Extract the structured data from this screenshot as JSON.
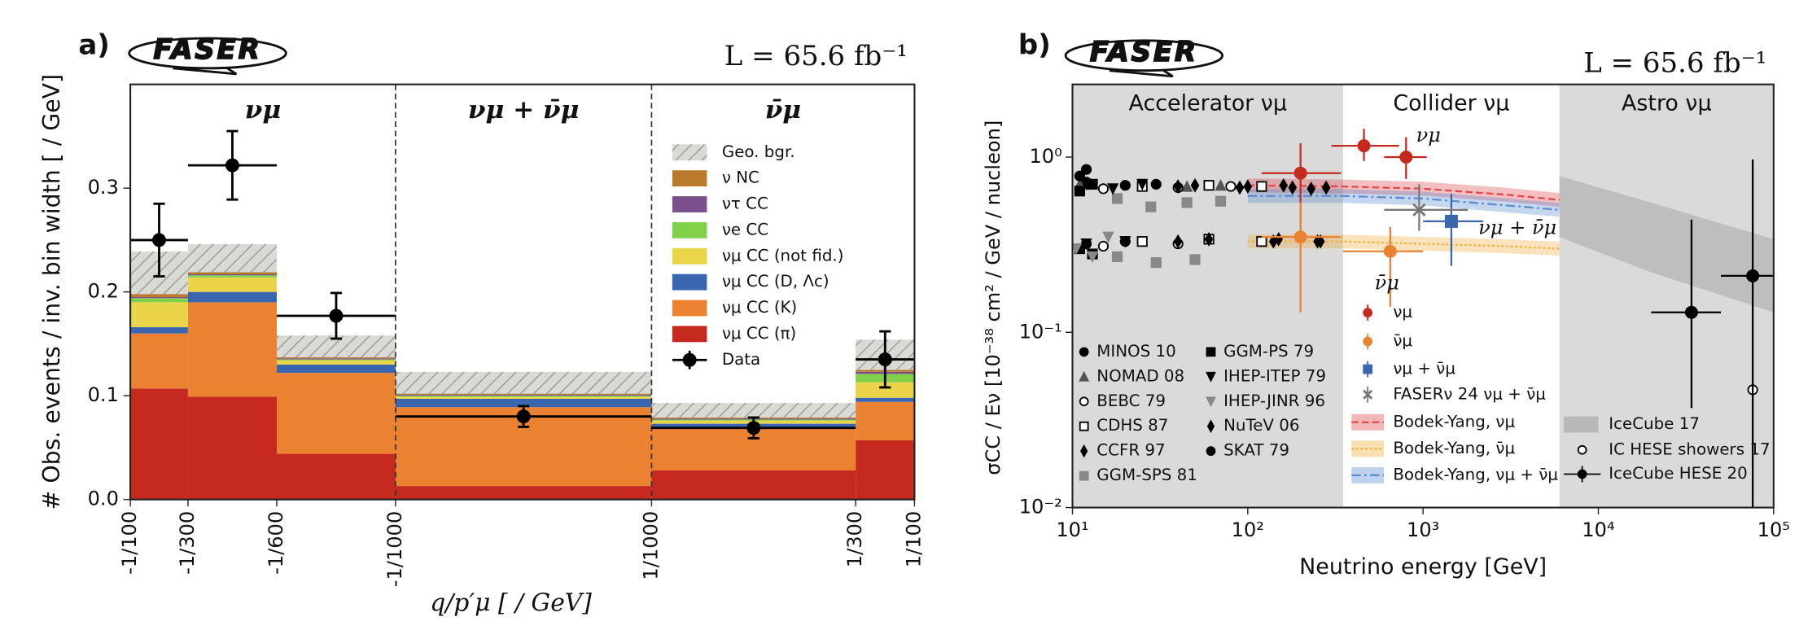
{
  "chart_data": [
    {
      "type": "stacked-histogram",
      "panel_label": "a)",
      "logo": "FASER",
      "luminosity": "L = 65.6 fb⁻¹",
      "xlabel": "q/p′μ [ / GeV]",
      "ylabel": "# Obs. events / inv. bin width [ / GeV]",
      "regions": [
        "νμ",
        "νμ + ν̄μ",
        "ν̄μ"
      ],
      "bins": [
        "-1/100",
        "-1/300",
        "-1/600",
        "-1/1000",
        "1/1000",
        "1/300",
        "1/100"
      ],
      "ylim": [
        0,
        0.4
      ],
      "yticks": [
        {
          "value": 0,
          "label": "0.0"
        },
        0.1,
        0.2,
        0.3
      ],
      "series": [
        {
          "name": "νμ CC (π)",
          "color": "#c62a1f",
          "values": [
            0.107,
            0.099,
            0.044,
            0.013,
            0.028,
            0.057
          ]
        },
        {
          "name": "νμ CC (K)",
          "color": "#ea8232",
          "values": [
            0.053,
            0.091,
            0.078,
            0.076,
            0.042,
            0.037
          ]
        },
        {
          "name": "νμ CC (D, Λc)",
          "color": "#3a66b0",
          "values": [
            0.006,
            0.01,
            0.008,
            0.008,
            0.003,
            0.004
          ]
        },
        {
          "name": "νμ CC (not fid.)",
          "color": "#e9d44a",
          "values": [
            0.024,
            0.014,
            0.004,
            0.002,
            0.003,
            0.015
          ]
        },
        {
          "name": "νe CC",
          "color": "#80d04a",
          "values": [
            0.004,
            0.002,
            0.001,
            0.001,
            0.001,
            0.008
          ]
        },
        {
          "name": "ντ CC",
          "color": "#7b4f8c",
          "values": [
            0.001,
            0.001,
            0.001,
            0.001,
            0.001,
            0.002
          ]
        },
        {
          "name": "ν NC",
          "color": "#b97a2e",
          "values": [
            0.003,
            0.002,
            0.001,
            0.001,
            0.001,
            0.002
          ]
        },
        {
          "name": "Geo. bgr.",
          "color": "#dadad4",
          "hatch": true,
          "values": [
            0.041,
            0.027,
            0.021,
            0.021,
            0.014,
            0.029
          ]
        }
      ],
      "data": {
        "name": "Data",
        "color": "#000000",
        "values": [
          0.25,
          0.322,
          0.177,
          0.08,
          0.069,
          0.135
        ],
        "errors": [
          0.035,
          0.033,
          0.022,
          0.01,
          0.01,
          0.027
        ]
      }
    },
    {
      "type": "log-scatter",
      "panel_label": "b)",
      "logo": "FASER",
      "luminosity": "L = 65.6 fb⁻¹",
      "xlabel": "Neutrino energy [GeV]",
      "ylabel": "σCC / Eν [10⁻³⁸ cm² / GeV / nucleon]",
      "xlog": true,
      "ylog": true,
      "xlim": [
        10,
        100000
      ],
      "xticks": [
        {
          "value": 10,
          "label": "10¹"
        },
        {
          "value": 100,
          "label": "10²"
        },
        {
          "value": 1000,
          "label": "10³"
        },
        {
          "value": 10000,
          "label": "10⁴"
        },
        {
          "value": 100000,
          "label": "10⁵"
        }
      ],
      "ylim": [
        0.01,
        2.6
      ],
      "yticks": [
        {
          "value": 0.01,
          "label": "10⁻²"
        },
        {
          "value": 0.1,
          "label": "10⁻¹"
        },
        {
          "value": 1,
          "label": "10⁰"
        }
      ],
      "regions": [
        {
          "label": "Accelerator νμ",
          "range": [
            10,
            350
          ],
          "color": "#dadada"
        },
        {
          "label": "Collider νμ",
          "range": [
            350,
            6000
          ],
          "color": "#ffffff"
        },
        {
          "label": "Astro νμ",
          "range": [
            6000,
            100000
          ],
          "color": "#dadada"
        }
      ],
      "models": [
        {
          "name": "Bodek-Yang, νμ",
          "color": "#e0484a",
          "dash": "6,3",
          "x": [
            100,
            350,
            1000,
            3000,
            6000
          ],
          "values": [
            0.69,
            0.68,
            0.66,
            0.61,
            0.57
          ]
        },
        {
          "name": "Bodek-Yang, ν̄μ",
          "color": "#f2b040",
          "dash": "2,2",
          "x": [
            100,
            350,
            1000,
            3000,
            6000
          ],
          "values": [
            0.33,
            0.33,
            0.32,
            0.31,
            0.3
          ]
        },
        {
          "name": "Bodek-Yang, νμ + ν̄μ",
          "color": "#5a8ad0",
          "dash": "8,3,2,3",
          "x": [
            100,
            350,
            1000,
            3000,
            6000
          ],
          "values": [
            0.6,
            0.6,
            0.58,
            0.53,
            0.5
          ]
        }
      ],
      "bands": [
        {
          "name": "IceCube 17",
          "color": "#b8b8b8",
          "x": [
            6000,
            20000,
            100000
          ],
          "upper": [
            0.78,
            0.55,
            0.34
          ],
          "lower": [
            0.35,
            0.22,
            0.13
          ]
        }
      ],
      "series": [
        {
          "name": "MINOS 10",
          "color": "#000000",
          "marker": "circle",
          "x": [
            12,
            20,
            30,
            12,
            20
          ],
          "values": [
            0.72,
            0.69,
            0.7,
            0.32,
            0.33
          ]
        },
        {
          "name": "NOMAD 08",
          "color": "#555555",
          "marker": "triangle",
          "x": [
            11,
            25,
            45,
            70
          ],
          "values": [
            0.7,
            0.69,
            0.68,
            0.69
          ]
        },
        {
          "name": "BEBC 79",
          "color": "#000000",
          "marker": "open-circle",
          "x": [
            15,
            40,
            80,
            15,
            40
          ],
          "values": [
            0.66,
            0.67,
            0.68,
            0.31,
            0.32
          ]
        },
        {
          "name": "CDHS 87",
          "color": "#000000",
          "marker": "open-square",
          "x": [
            25,
            60,
            120,
            25,
            60,
            120
          ],
          "values": [
            0.68,
            0.69,
            0.68,
            0.33,
            0.34,
            0.33
          ]
        },
        {
          "name": "CCFR 97",
          "color": "#000000",
          "marker": "diamond",
          "x": [
            40,
            90,
            160,
            230,
            40,
            150,
            250
          ],
          "values": [
            0.68,
            0.67,
            0.69,
            0.66,
            0.33,
            0.34,
            0.33
          ]
        },
        {
          "name": "GGM-SPS 81",
          "color": "#888888",
          "marker": "square",
          "x": [
            18,
            28,
            45,
            70,
            18,
            30,
            50
          ],
          "values": [
            0.58,
            0.52,
            0.55,
            0.56,
            0.27,
            0.25,
            0.26
          ]
        },
        {
          "name": "GGM-PS 79",
          "color": "#000000",
          "marker": "square",
          "x": [
            11,
            13,
            11,
            13
          ],
          "values": [
            0.64,
            0.7,
            0.3,
            0.28
          ]
        },
        {
          "name": "IHEP-ITEP 79",
          "color": "#000000",
          "marker": "down-triangle",
          "x": [
            12,
            17,
            25,
            12,
            20
          ],
          "values": [
            0.7,
            0.66,
            0.7,
            0.32,
            0.33
          ]
        },
        {
          "name": "IHEP-JINR 96",
          "color": "#888888",
          "marker": "down-triangle",
          "x": [
            10.5,
            13,
            16
          ],
          "values": [
            0.3,
            0.27,
            0.35
          ]
        },
        {
          "name": "NuTeV 06",
          "color": "#000000",
          "marker": "diamond",
          "x": [
            50,
            100,
            180,
            280,
            60,
            140,
            260
          ],
          "values": [
            0.69,
            0.68,
            0.67,
            0.67,
            0.34,
            0.33,
            0.33
          ]
        },
        {
          "name": "SKAT 79",
          "color": "#000000",
          "marker": "circle",
          "x": [
            11,
            12
          ],
          "values": [
            0.78,
            0.85
          ]
        },
        {
          "name": "νμ",
          "color": "#c62a1f",
          "marker": "circle",
          "x": [
            200,
            460,
            800
          ],
          "values": [
            0.81,
            1.16,
            1.0
          ],
          "ylow": [
            0.42,
            0.95,
            0.75
          ],
          "yhigh": [
            1.2,
            1.45,
            1.3
          ],
          "xlow": [
            120,
            300,
            600
          ],
          "xhigh": [
            340,
            730,
            1050
          ]
        },
        {
          "name": "ν̄μ",
          "color": "#ea8232",
          "marker": "circle",
          "x": [
            200,
            650
          ],
          "values": [
            0.35,
            0.29
          ],
          "ylow": [
            0.13,
            0.14
          ],
          "yhigh": [
            0.55,
            0.4
          ],
          "xlow": [
            120,
            350
          ],
          "xhigh": [
            340,
            1000
          ]
        },
        {
          "name": "νμ + ν̄μ",
          "color": "#3a66b0",
          "marker": "square",
          "x": [
            1450
          ],
          "values": [
            0.43
          ],
          "ylow": [
            0.24
          ],
          "yhigh": [
            0.62
          ],
          "xlow": [
            1000
          ],
          "xhigh": [
            2200
          ]
        },
        {
          "name": "FASERν 24 νμ + ν̄μ",
          "color": "#777777",
          "marker": "cross",
          "x": [
            950
          ],
          "values": [
            0.5
          ],
          "ylow": [
            0.38
          ],
          "yhigh": [
            0.7
          ],
          "xlow": [
            600
          ],
          "xhigh": [
            1800
          ]
        },
        {
          "name": "IC HESE showers 17",
          "color": "#000000",
          "marker": "open-circle",
          "x": [
            76000
          ],
          "values": [
            0.047
          ]
        },
        {
          "name": "IceCube HESE 20",
          "color": "#000000",
          "marker": "circle",
          "x": [
            34000,
            76000
          ],
          "values": [
            0.13,
            0.21
          ],
          "ylow": [
            0.037,
            0.01
          ],
          "yhigh": [
            0.44,
            0.97
          ],
          "xlow": [
            20000,
            50000
          ],
          "xhigh": [
            50000,
            100000
          ]
        }
      ]
    }
  ]
}
